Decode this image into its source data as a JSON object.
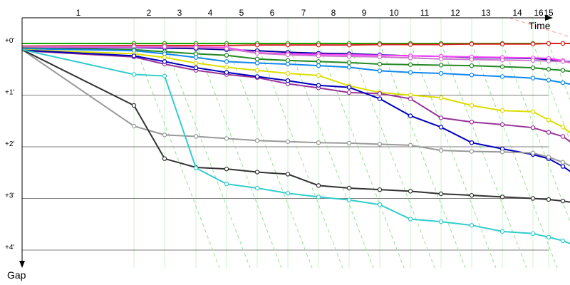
{
  "chart_data": {
    "type": "line",
    "xlabel": "Time",
    "ylabel": "Gap",
    "x_tick_labels": [
      "1",
      "2",
      "3",
      "4",
      "5",
      "6",
      "7",
      "8",
      "9",
      "10",
      "11",
      "12",
      "13",
      "14",
      "16",
      "15"
    ],
    "y_tick_labels": [
      "+0'",
      "+1'",
      "+2'",
      "+3'",
      "+4'"
    ],
    "y_values_meaning": "gap in minutes",
    "grid": true,
    "colors": {
      "grid_h": "#555555",
      "grid_v": "#ccf0cc",
      "diag": "#99dd99",
      "diag_red": "#ff9999"
    },
    "x_stations": [
      1,
      2,
      3,
      4,
      5,
      6,
      7,
      8,
      9,
      10,
      11,
      12,
      13,
      14,
      15,
      16,
      17,
      18
    ],
    "series": [
      {
        "color": "#11aa00",
        "values": [
          0.0,
          0.0,
          0.0,
          0.0,
          0.0,
          0.0,
          0.0,
          0.0,
          0.0,
          0.0,
          0.0,
          0.0,
          0.0,
          0.0,
          0.0,
          0.0,
          0.0,
          0.0
        ]
      },
      {
        "color": "#dd2222",
        "values": [
          0.05,
          0.04,
          0.04,
          0.04,
          0.04,
          0.03,
          0.03,
          0.03,
          0.03,
          0.02,
          0.02,
          0.02,
          0.01,
          0.01,
          0.01,
          0.0,
          0.0,
          0.0
        ]
      },
      {
        "color": "#000099",
        "values": [
          0.08,
          0.08,
          0.09,
          0.1,
          0.12,
          0.14,
          0.17,
          0.19,
          0.2,
          0.22,
          0.24,
          0.25,
          0.27,
          0.28,
          0.29,
          0.31,
          0.34,
          0.36
        ]
      },
      {
        "color": "#ff44ff",
        "values": [
          0.07,
          0.07,
          0.07,
          0.07,
          0.08,
          0.18,
          0.2,
          0.21,
          0.22,
          0.23,
          0.24,
          0.25,
          0.26,
          0.27,
          0.28,
          0.29,
          0.33,
          0.38
        ]
      },
      {
        "color": "#cc77cc",
        "values": [
          0.06,
          0.06,
          0.06,
          0.08,
          0.1,
          0.19,
          0.22,
          0.24,
          0.25,
          0.26,
          0.28,
          0.3,
          0.31,
          0.32,
          0.33,
          0.34,
          0.35,
          0.38
        ]
      },
      {
        "color": "#228822",
        "values": [
          0.09,
          0.12,
          0.16,
          0.2,
          0.23,
          0.3,
          0.33,
          0.35,
          0.37,
          0.4,
          0.41,
          0.42,
          0.43,
          0.45,
          0.47,
          0.5,
          0.52,
          0.55
        ]
      },
      {
        "color": "#1188ee",
        "values": [
          0.1,
          0.14,
          0.2,
          0.27,
          0.35,
          0.38,
          0.4,
          0.43,
          0.46,
          0.53,
          0.56,
          0.58,
          0.61,
          0.64,
          0.67,
          0.71,
          0.76,
          0.8
        ]
      },
      {
        "color": "#dddd00",
        "values": [
          0.12,
          0.2,
          0.27,
          0.38,
          0.46,
          0.52,
          0.58,
          0.62,
          0.82,
          0.95,
          1.0,
          1.05,
          1.2,
          1.3,
          1.32,
          1.48,
          1.62,
          1.78
        ]
      },
      {
        "color": "#993399",
        "values": [
          0.14,
          0.26,
          0.4,
          0.52,
          0.6,
          0.66,
          0.78,
          0.86,
          0.95,
          0.97,
          1.07,
          1.44,
          1.52,
          1.57,
          1.63,
          1.72,
          1.8,
          1.95
        ]
      },
      {
        "color": "#0000bb",
        "values": [
          0.13,
          0.24,
          0.35,
          0.47,
          0.56,
          0.64,
          0.72,
          0.81,
          0.85,
          1.07,
          1.4,
          1.62,
          1.92,
          2.04,
          2.15,
          2.23,
          2.38,
          2.52
        ]
      },
      {
        "color": "#999999",
        "values": [
          0.12,
          1.6,
          1.77,
          1.8,
          1.84,
          1.88,
          1.9,
          1.92,
          1.93,
          1.95,
          1.97,
          2.07,
          2.09,
          2.1,
          2.12,
          2.2,
          2.3,
          2.4
        ]
      },
      {
        "color": "#333333",
        "values": [
          0.12,
          1.2,
          2.23,
          2.4,
          2.43,
          2.49,
          2.53,
          2.75,
          2.8,
          2.83,
          2.86,
          2.91,
          2.94,
          2.97,
          3.0,
          3.02,
          3.05,
          3.08
        ]
      },
      {
        "color": "#33cccc",
        "values": [
          0.12,
          0.6,
          0.63,
          2.41,
          2.72,
          2.8,
          2.9,
          2.97,
          3.03,
          3.12,
          3.4,
          3.45,
          3.52,
          3.64,
          3.68,
          3.75,
          3.82,
          3.9
        ]
      }
    ]
  }
}
